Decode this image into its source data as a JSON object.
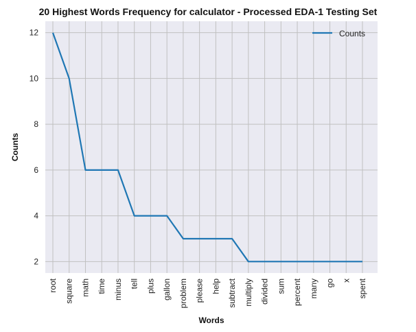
{
  "chart_data": {
    "type": "line",
    "title": "20 Highest Words Frequency for calculator - Processed EDA-1 Testing Set",
    "xlabel": "Words",
    "ylabel": "Counts",
    "categories": [
      "root",
      "square",
      "math",
      "time",
      "minus",
      "tell",
      "plus",
      "gallon",
      "problem",
      "please",
      "help",
      "subtract",
      "multiply",
      "divided",
      "sum",
      "percent",
      "many",
      "go",
      "x",
      "spent"
    ],
    "series": [
      {
        "name": "Counts",
        "values": [
          12,
          10,
          6,
          6,
          6,
          4,
          4,
          4,
          3,
          3,
          3,
          3,
          2,
          2,
          2,
          2,
          2,
          2,
          2,
          2
        ],
        "color": "#1f77b4"
      }
    ],
    "ylim": [
      1.5,
      12.5
    ],
    "yticks": [
      2,
      4,
      6,
      8,
      10,
      12
    ],
    "grid": true,
    "legend_position": "top-right",
    "background_color": "#eaeaf2",
    "grid_color": "#c0c0c0"
  }
}
